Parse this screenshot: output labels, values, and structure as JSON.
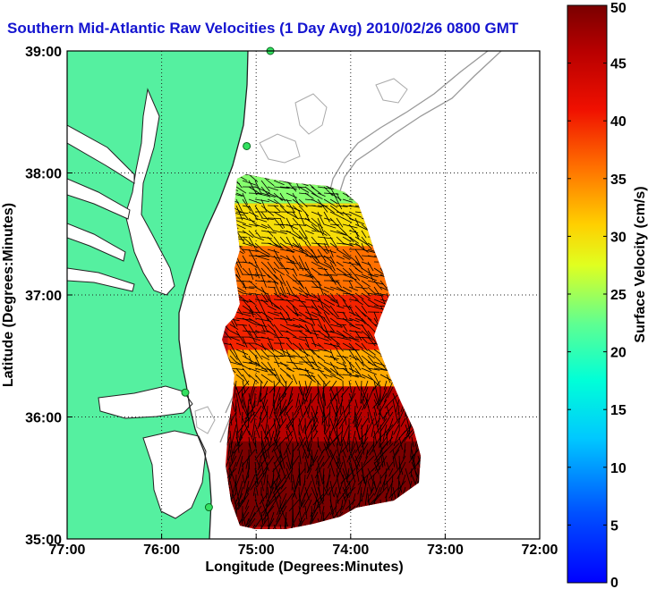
{
  "title": "Southern Mid-Atlantic Raw Velocities (1 Day Avg) 2010/02/26 0800 GMT",
  "chart_data": {
    "type": "heatmap",
    "subtype": "surface current vector map",
    "xlabel": "Longitude (Degrees:Minutes)",
    "ylabel": "Latitude (Degrees:Minutes)",
    "xlim": [
      -77,
      -72
    ],
    "ylim": [
      35,
      39
    ],
    "x_ticks": [
      {
        "value": -77,
        "label": "77:00"
      },
      {
        "value": -76,
        "label": "76:00"
      },
      {
        "value": -75,
        "label": "75:00"
      },
      {
        "value": -74,
        "label": "74:00"
      },
      {
        "value": -73,
        "label": "73:00"
      },
      {
        "value": -72,
        "label": "72:00"
      }
    ],
    "y_ticks": [
      {
        "value": 35,
        "label": "35:00"
      },
      {
        "value": 36,
        "label": "36:00"
      },
      {
        "value": 37,
        "label": "37:00"
      },
      {
        "value": 38,
        "label": "38:00"
      },
      {
        "value": 39,
        "label": "39:00"
      }
    ],
    "grid": true,
    "colorbar": {
      "label": "Surface Velocity (cm/s)",
      "range": [
        0,
        50
      ],
      "ticks": [
        0,
        5,
        10,
        15,
        20,
        25,
        30,
        35,
        40,
        45,
        50
      ],
      "colormap": "jet"
    },
    "regions": [
      {
        "lat_min": 37.75,
        "lat_max": 38.0,
        "speed": 24
      },
      {
        "lat_min": 37.4,
        "lat_max": 37.75,
        "speed": 30
      },
      {
        "lat_min": 37.0,
        "lat_max": 37.4,
        "speed": 36
      },
      {
        "lat_min": 36.55,
        "lat_max": 37.0,
        "speed": 40
      },
      {
        "lat_min": 36.25,
        "lat_max": 36.55,
        "speed": 33
      },
      {
        "lat_min": 35.8,
        "lat_max": 36.25,
        "speed": 46
      },
      {
        "lat_min": 35.1,
        "lat_max": 35.8,
        "speed": 50
      }
    ],
    "vector_direction": "predominantly southeastward offshore; southward near Cape Hatteras",
    "land_color": "#55f0a0",
    "stations": [
      {
        "lon": -74.85,
        "lat": 39.0
      },
      {
        "lon": -75.1,
        "lat": 38.22
      },
      {
        "lon": -75.75,
        "lat": 36.2
      },
      {
        "lon": -75.5,
        "lat": 35.26
      }
    ]
  }
}
